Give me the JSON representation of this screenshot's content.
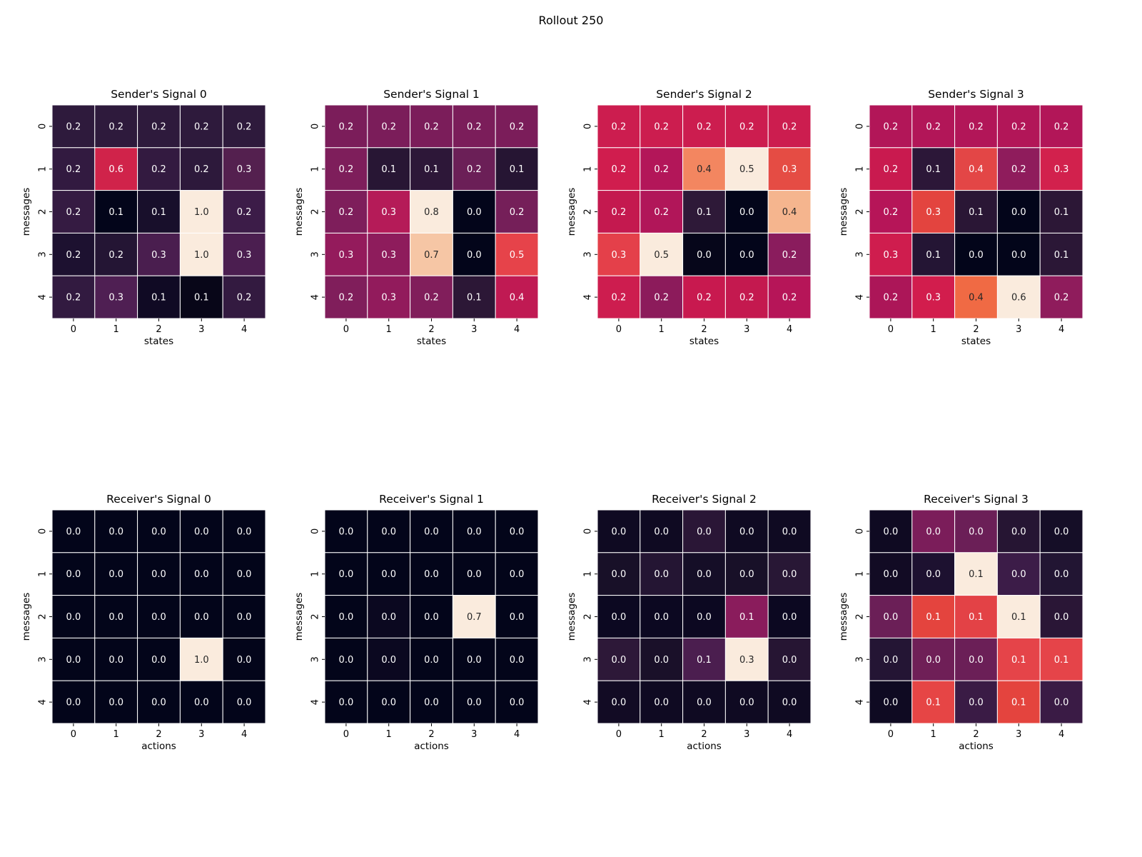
{
  "figure": {
    "suptitle": "Rollout 250"
  },
  "chart_data": [
    {
      "type": "heatmap",
      "title": "Sender's Signal 0",
      "xlabel": "states",
      "ylabel": "messages",
      "x_ticks": [
        "0",
        "1",
        "2",
        "3",
        "4"
      ],
      "y_ticks": [
        "0",
        "1",
        "2",
        "3",
        "4"
      ],
      "values": [
        [
          0.2,
          0.2,
          0.2,
          0.2,
          0.2
        ],
        [
          0.2,
          0.6,
          0.2,
          0.2,
          0.3
        ],
        [
          0.2,
          0.1,
          0.1,
          1.0,
          0.2
        ],
        [
          0.2,
          0.2,
          0.3,
          1.0,
          0.3
        ],
        [
          0.2,
          0.3,
          0.1,
          0.1,
          0.2
        ]
      ]
    },
    {
      "type": "heatmap",
      "title": "Sender's Signal 1",
      "xlabel": "states",
      "ylabel": "messages",
      "x_ticks": [
        "0",
        "1",
        "2",
        "3",
        "4"
      ],
      "y_ticks": [
        "0",
        "1",
        "2",
        "3",
        "4"
      ],
      "values": [
        [
          0.2,
          0.2,
          0.2,
          0.2,
          0.2
        ],
        [
          0.2,
          0.1,
          0.1,
          0.2,
          0.1
        ],
        [
          0.2,
          0.3,
          0.8,
          0.0,
          0.2
        ],
        [
          0.3,
          0.3,
          0.7,
          0.0,
          0.5
        ],
        [
          0.2,
          0.3,
          0.2,
          0.1,
          0.4
        ]
      ]
    },
    {
      "type": "heatmap",
      "title": "Sender's Signal 2",
      "xlabel": "states",
      "ylabel": "messages",
      "x_ticks": [
        "0",
        "1",
        "2",
        "3",
        "4"
      ],
      "y_ticks": [
        "0",
        "1",
        "2",
        "3",
        "4"
      ],
      "values": [
        [
          0.2,
          0.2,
          0.2,
          0.2,
          0.2
        ],
        [
          0.2,
          0.2,
          0.4,
          0.5,
          0.3
        ],
        [
          0.2,
          0.2,
          0.1,
          0.0,
          0.4
        ],
        [
          0.3,
          0.5,
          0.0,
          0.0,
          0.2
        ],
        [
          0.2,
          0.2,
          0.2,
          0.2,
          0.2
        ]
      ]
    },
    {
      "type": "heatmap",
      "title": "Sender's Signal 3",
      "xlabel": "states",
      "ylabel": "messages",
      "x_ticks": [
        "0",
        "1",
        "2",
        "3",
        "4"
      ],
      "y_ticks": [
        "0",
        "1",
        "2",
        "3",
        "4"
      ],
      "values": [
        [
          0.2,
          0.2,
          0.2,
          0.2,
          0.2
        ],
        [
          0.2,
          0.1,
          0.4,
          0.2,
          0.3
        ],
        [
          0.2,
          0.3,
          0.1,
          0.0,
          0.1
        ],
        [
          0.3,
          0.1,
          0.0,
          0.0,
          0.1
        ],
        [
          0.2,
          0.3,
          0.4,
          0.6,
          0.2
        ]
      ]
    },
    {
      "type": "heatmap",
      "title": "Receiver's Signal 0",
      "xlabel": "actions",
      "ylabel": "messages",
      "x_ticks": [
        "0",
        "1",
        "2",
        "3",
        "4"
      ],
      "y_ticks": [
        "0",
        "1",
        "2",
        "3",
        "4"
      ],
      "values": [
        [
          0.0,
          0.0,
          0.0,
          0.0,
          0.0
        ],
        [
          0.0,
          0.0,
          0.0,
          0.0,
          0.0
        ],
        [
          0.0,
          0.0,
          0.0,
          0.0,
          0.0
        ],
        [
          0.0,
          0.0,
          0.0,
          1.0,
          0.0
        ],
        [
          0.0,
          0.0,
          0.0,
          0.0,
          0.0
        ]
      ]
    },
    {
      "type": "heatmap",
      "title": "Receiver's Signal 1",
      "xlabel": "actions",
      "ylabel": "messages",
      "x_ticks": [
        "0",
        "1",
        "2",
        "3",
        "4"
      ],
      "y_ticks": [
        "0",
        "1",
        "2",
        "3",
        "4"
      ],
      "values": [
        [
          0.0,
          0.0,
          0.0,
          0.0,
          0.0
        ],
        [
          0.0,
          0.0,
          0.0,
          0.0,
          0.0
        ],
        [
          0.0,
          0.0,
          0.0,
          0.7,
          0.0
        ],
        [
          0.0,
          0.0,
          0.0,
          0.0,
          0.0
        ],
        [
          0.0,
          0.0,
          0.0,
          0.0,
          0.0
        ]
      ]
    },
    {
      "type": "heatmap",
      "title": "Receiver's Signal 2",
      "xlabel": "actions",
      "ylabel": "messages",
      "x_ticks": [
        "0",
        "1",
        "2",
        "3",
        "4"
      ],
      "y_ticks": [
        "0",
        "1",
        "2",
        "3",
        "4"
      ],
      "values": [
        [
          0.0,
          0.0,
          0.0,
          0.0,
          0.0
        ],
        [
          0.0,
          0.0,
          0.0,
          0.0,
          0.0
        ],
        [
          0.0,
          0.0,
          0.0,
          0.1,
          0.0
        ],
        [
          0.0,
          0.0,
          0.1,
          0.3,
          0.0
        ],
        [
          0.0,
          0.0,
          0.0,
          0.0,
          0.0
        ]
      ]
    },
    {
      "type": "heatmap",
      "title": "Receiver's Signal 3",
      "xlabel": "actions",
      "ylabel": "messages",
      "x_ticks": [
        "0",
        "1",
        "2",
        "3",
        "4"
      ],
      "y_ticks": [
        "0",
        "1",
        "2",
        "3",
        "4"
      ],
      "values": [
        [
          0.0,
          0.0,
          0.0,
          0.0,
          0.0
        ],
        [
          0.0,
          0.0,
          0.1,
          0.0,
          0.0
        ],
        [
          0.0,
          0.1,
          0.1,
          0.1,
          0.0
        ],
        [
          0.0,
          0.0,
          0.0,
          0.1,
          0.1
        ],
        [
          0.0,
          0.1,
          0.0,
          0.1,
          0.0
        ]
      ]
    }
  ]
}
